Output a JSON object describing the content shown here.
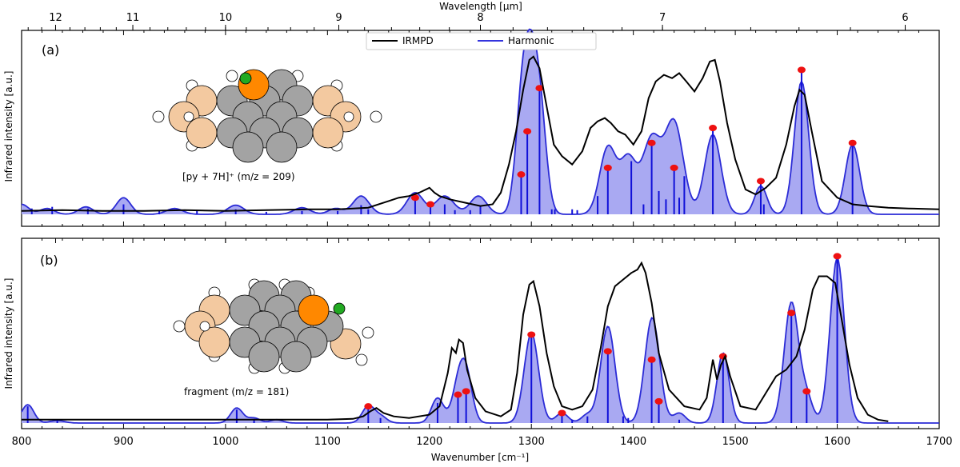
{
  "chart_data": {
    "type": "line",
    "x_axis": {
      "label": "Wavenumber [cm⁻¹]",
      "range": [
        800,
        1700
      ],
      "ticks": [
        800,
        900,
        1000,
        1100,
        1200,
        1300,
        1400,
        1500,
        1600,
        1700
      ]
    },
    "top_axis": {
      "label": "Wavelength [μm]",
      "ticks": [
        12,
        11,
        10,
        9,
        8,
        7,
        6
      ]
    },
    "y_label": "Infrared intensity [a.u.]",
    "legend": {
      "placement": "top-center",
      "entries": [
        {
          "name": "IRMPD",
          "color": "#000000"
        },
        {
          "name": "Harmonic",
          "color": "#3333dd"
        }
      ]
    },
    "colors": {
      "irmpd": "#000000",
      "harmonic_line": "#2b2bd6",
      "harmonic_fill": "#a9a9f2",
      "stick": "#1010d8",
      "marker": "#ee1111",
      "ring_gray": "#a3a3a3",
      "ring_peach": "#f3c9a0",
      "ring_orange": "#ff8800",
      "atom_green": "#22aa22"
    },
    "panels": [
      {
        "tag": "(a)",
        "label": "[py + 7H]⁺  (m/z = 209)",
        "ylim": [
          0,
          1.05
        ],
        "harmonic_peaks": [
          {
            "x": 800,
            "h": 0.06,
            "w": 7
          },
          {
            "x": 825,
            "h": 0.035,
            "w": 7
          },
          {
            "x": 863,
            "h": 0.045,
            "w": 7
          },
          {
            "x": 900,
            "h": 0.1,
            "w": 7
          },
          {
            "x": 950,
            "h": 0.035,
            "w": 8
          },
          {
            "x": 1010,
            "h": 0.055,
            "w": 8
          },
          {
            "x": 1075,
            "h": 0.04,
            "w": 8
          },
          {
            "x": 1108,
            "h": 0.035,
            "w": 7
          },
          {
            "x": 1133,
            "h": 0.11,
            "w": 8
          },
          {
            "x": 1186,
            "h": 0.13,
            "w": 8
          },
          {
            "x": 1215,
            "h": 0.11,
            "w": 9
          },
          {
            "x": 1248,
            "h": 0.11,
            "w": 8
          },
          {
            "x": 1290,
            "h": 0.42,
            "w": 6
          },
          {
            "x": 1300,
            "h": 0.93,
            "w": 8
          },
          {
            "x": 1310,
            "h": 0.3,
            "w": 6
          },
          {
            "x": 1375,
            "h": 0.4,
            "w": 8
          },
          {
            "x": 1395,
            "h": 0.33,
            "w": 8
          },
          {
            "x": 1418,
            "h": 0.45,
            "w": 9
          },
          {
            "x": 1440,
            "h": 0.55,
            "w": 9
          },
          {
            "x": 1478,
            "h": 0.48,
            "w": 8
          },
          {
            "x": 1525,
            "h": 0.17,
            "w": 6
          },
          {
            "x": 1565,
            "h": 0.8,
            "w": 7
          },
          {
            "x": 1615,
            "h": 0.42,
            "w": 7
          }
        ],
        "irmpd_points": [
          [
            800,
            0.02
          ],
          [
            840,
            0.025
          ],
          [
            880,
            0.02
          ],
          [
            920,
            0.02
          ],
          [
            960,
            0.025
          ],
          [
            1000,
            0.02
          ],
          [
            1040,
            0.025
          ],
          [
            1080,
            0.03
          ],
          [
            1110,
            0.03
          ],
          [
            1140,
            0.04
          ],
          [
            1160,
            0.08
          ],
          [
            1170,
            0.1
          ],
          [
            1180,
            0.11
          ],
          [
            1190,
            0.13
          ],
          [
            1200,
            0.16
          ],
          [
            1205,
            0.13
          ],
          [
            1210,
            0.11
          ],
          [
            1220,
            0.09
          ],
          [
            1235,
            0.07
          ],
          [
            1250,
            0.05
          ],
          [
            1262,
            0.06
          ],
          [
            1270,
            0.13
          ],
          [
            1278,
            0.3
          ],
          [
            1285,
            0.5
          ],
          [
            1292,
            0.75
          ],
          [
            1298,
            0.93
          ],
          [
            1302,
            0.95
          ],
          [
            1308,
            0.88
          ],
          [
            1315,
            0.65
          ],
          [
            1322,
            0.42
          ],
          [
            1330,
            0.35
          ],
          [
            1340,
            0.3
          ],
          [
            1350,
            0.38
          ],
          [
            1358,
            0.52
          ],
          [
            1365,
            0.56
          ],
          [
            1372,
            0.58
          ],
          [
            1378,
            0.55
          ],
          [
            1385,
            0.5
          ],
          [
            1392,
            0.48
          ],
          [
            1400,
            0.42
          ],
          [
            1408,
            0.5
          ],
          [
            1415,
            0.7
          ],
          [
            1422,
            0.8
          ],
          [
            1430,
            0.84
          ],
          [
            1438,
            0.82
          ],
          [
            1445,
            0.85
          ],
          [
            1452,
            0.8
          ],
          [
            1460,
            0.74
          ],
          [
            1468,
            0.82
          ],
          [
            1475,
            0.92
          ],
          [
            1480,
            0.93
          ],
          [
            1485,
            0.8
          ],
          [
            1492,
            0.55
          ],
          [
            1500,
            0.33
          ],
          [
            1510,
            0.15
          ],
          [
            1520,
            0.12
          ],
          [
            1530,
            0.16
          ],
          [
            1540,
            0.22
          ],
          [
            1550,
            0.42
          ],
          [
            1558,
            0.65
          ],
          [
            1563,
            0.75
          ],
          [
            1568,
            0.72
          ],
          [
            1575,
            0.5
          ],
          [
            1585,
            0.2
          ],
          [
            1600,
            0.1
          ],
          [
            1615,
            0.06
          ],
          [
            1630,
            0.05
          ],
          [
            1650,
            0.04
          ],
          [
            1670,
            0.035
          ],
          [
            1700,
            0.03
          ]
        ],
        "sticks": [
          {
            "x": 810,
            "h": 0.035
          },
          {
            "x": 830,
            "h": 0.045
          },
          {
            "x": 865,
            "h": 0.035
          },
          {
            "x": 900,
            "h": 0.06
          },
          {
            "x": 935,
            "h": 0.02
          },
          {
            "x": 972,
            "h": 0.02
          },
          {
            "x": 1010,
            "h": 0.03
          },
          {
            "x": 1040,
            "h": 0.015
          },
          {
            "x": 1075,
            "h": 0.02
          },
          {
            "x": 1110,
            "h": 0.02
          },
          {
            "x": 1133,
            "h": 0.055
          },
          {
            "x": 1140,
            "h": 0.03
          },
          {
            "x": 1186,
            "h": 0.1,
            "marker": true
          },
          {
            "x": 1201,
            "h": 0.06,
            "marker": true
          },
          {
            "x": 1215,
            "h": 0.06
          },
          {
            "x": 1225,
            "h": 0.025
          },
          {
            "x": 1240,
            "h": 0.025
          },
          {
            "x": 1250,
            "h": 0.05
          },
          {
            "x": 1290,
            "h": 0.24,
            "marker": true
          },
          {
            "x": 1296,
            "h": 0.5,
            "marker": true
          },
          {
            "x": 1308,
            "h": 0.76,
            "marker": true
          },
          {
            "x": 1320,
            "h": 0.03
          },
          {
            "x": 1323,
            "h": 0.03
          },
          {
            "x": 1340,
            "h": 0.03
          },
          {
            "x": 1345,
            "h": 0.025
          },
          {
            "x": 1365,
            "h": 0.11
          },
          {
            "x": 1375,
            "h": 0.28,
            "marker": true
          },
          {
            "x": 1398,
            "h": 0.32
          },
          {
            "x": 1410,
            "h": 0.06
          },
          {
            "x": 1418,
            "h": 0.43,
            "marker": true
          },
          {
            "x": 1425,
            "h": 0.14
          },
          {
            "x": 1432,
            "h": 0.09
          },
          {
            "x": 1440,
            "h": 0.28,
            "marker": true
          },
          {
            "x": 1445,
            "h": 0.1
          },
          {
            "x": 1450,
            "h": 0.23
          },
          {
            "x": 1478,
            "h": 0.52,
            "marker": true
          },
          {
            "x": 1525,
            "h": 0.2,
            "marker": true
          },
          {
            "x": 1528,
            "h": 0.06
          },
          {
            "x": 1565,
            "h": 0.87,
            "marker": true
          },
          {
            "x": 1615,
            "h": 0.43,
            "marker": true
          }
        ]
      },
      {
        "tag": "(b)",
        "label": "fragment (m/z = 181)",
        "ylim": [
          0,
          1.05
        ],
        "harmonic_peaks": [
          {
            "x": 806,
            "h": 0.11,
            "w": 6
          },
          {
            "x": 835,
            "h": 0.015,
            "w": 7
          },
          {
            "x": 1011,
            "h": 0.09,
            "w": 6
          },
          {
            "x": 1028,
            "h": 0.03,
            "w": 6
          },
          {
            "x": 1050,
            "h": 0.02,
            "w": 6
          },
          {
            "x": 1140,
            "h": 0.1,
            "w": 6
          },
          {
            "x": 1152,
            "h": 0.04,
            "w": 6
          },
          {
            "x": 1208,
            "h": 0.15,
            "w": 6
          },
          {
            "x": 1228,
            "h": 0.2,
            "w": 6
          },
          {
            "x": 1236,
            "h": 0.28,
            "w": 6
          },
          {
            "x": 1300,
            "h": 0.54,
            "w": 7
          },
          {
            "x": 1330,
            "h": 0.06,
            "w": 6
          },
          {
            "x": 1355,
            "h": 0.05,
            "w": 6
          },
          {
            "x": 1375,
            "h": 0.58,
            "w": 7
          },
          {
            "x": 1418,
            "h": 0.6,
            "w": 7
          },
          {
            "x": 1425,
            "h": 0.06,
            "w": 6
          },
          {
            "x": 1445,
            "h": 0.06,
            "w": 6
          },
          {
            "x": 1488,
            "h": 0.42,
            "w": 6
          },
          {
            "x": 1555,
            "h": 0.72,
            "w": 7
          },
          {
            "x": 1570,
            "h": 0.15,
            "w": 6
          },
          {
            "x": 1600,
            "h": 0.99,
            "w": 7
          }
        ],
        "irmpd_points": [
          [
            800,
            0.02
          ],
          [
            900,
            0.02
          ],
          [
            1000,
            0.02
          ],
          [
            1100,
            0.02
          ],
          [
            1125,
            0.025
          ],
          [
            1135,
            0.04
          ],
          [
            1142,
            0.07
          ],
          [
            1148,
            0.09
          ],
          [
            1155,
            0.06
          ],
          [
            1165,
            0.04
          ],
          [
            1180,
            0.03
          ],
          [
            1200,
            0.05
          ],
          [
            1210,
            0.1
          ],
          [
            1218,
            0.3
          ],
          [
            1222,
            0.45
          ],
          [
            1226,
            0.42
          ],
          [
            1229,
            0.5
          ],
          [
            1233,
            0.48
          ],
          [
            1237,
            0.32
          ],
          [
            1245,
            0.15
          ],
          [
            1255,
            0.07
          ],
          [
            1270,
            0.04
          ],
          [
            1280,
            0.08
          ],
          [
            1286,
            0.3
          ],
          [
            1292,
            0.65
          ],
          [
            1298,
            0.83
          ],
          [
            1302,
            0.85
          ],
          [
            1308,
            0.7
          ],
          [
            1315,
            0.42
          ],
          [
            1322,
            0.22
          ],
          [
            1330,
            0.1
          ],
          [
            1340,
            0.08
          ],
          [
            1350,
            0.1
          ],
          [
            1360,
            0.2
          ],
          [
            1368,
            0.45
          ],
          [
            1375,
            0.7
          ],
          [
            1382,
            0.82
          ],
          [
            1390,
            0.86
          ],
          [
            1398,
            0.9
          ],
          [
            1404,
            0.92
          ],
          [
            1408,
            0.96
          ],
          [
            1412,
            0.9
          ],
          [
            1418,
            0.72
          ],
          [
            1425,
            0.42
          ],
          [
            1435,
            0.2
          ],
          [
            1450,
            0.1
          ],
          [
            1465,
            0.08
          ],
          [
            1472,
            0.15
          ],
          [
            1478,
            0.38
          ],
          [
            1482,
            0.26
          ],
          [
            1486,
            0.35
          ],
          [
            1490,
            0.4
          ],
          [
            1495,
            0.28
          ],
          [
            1505,
            0.1
          ],
          [
            1520,
            0.08
          ],
          [
            1530,
            0.18
          ],
          [
            1540,
            0.28
          ],
          [
            1550,
            0.32
          ],
          [
            1560,
            0.4
          ],
          [
            1568,
            0.56
          ],
          [
            1576,
            0.8
          ],
          [
            1582,
            0.88
          ],
          [
            1590,
            0.88
          ],
          [
            1598,
            0.84
          ],
          [
            1605,
            0.6
          ],
          [
            1612,
            0.35
          ],
          [
            1620,
            0.15
          ],
          [
            1630,
            0.05
          ],
          [
            1640,
            0.02
          ],
          [
            1650,
            0.01
          ]
        ],
        "sticks": [
          {
            "x": 806,
            "h": 0.1
          },
          {
            "x": 835,
            "h": 0.015
          },
          {
            "x": 1011,
            "h": 0.08
          },
          {
            "x": 1028,
            "h": 0.025
          },
          {
            "x": 1140,
            "h": 0.1,
            "marker": true
          },
          {
            "x": 1152,
            "h": 0.03
          },
          {
            "x": 1208,
            "h": 0.12
          },
          {
            "x": 1228,
            "h": 0.17,
            "marker": true
          },
          {
            "x": 1236,
            "h": 0.19,
            "marker": true
          },
          {
            "x": 1300,
            "h": 0.53,
            "marker": true
          },
          {
            "x": 1330,
            "h": 0.06,
            "marker": true
          },
          {
            "x": 1340,
            "h": 0.02
          },
          {
            "x": 1355,
            "h": 0.04
          },
          {
            "x": 1375,
            "h": 0.43,
            "marker": true
          },
          {
            "x": 1390,
            "h": 0.04
          },
          {
            "x": 1395,
            "h": 0.03
          },
          {
            "x": 1418,
            "h": 0.38,
            "marker": true
          },
          {
            "x": 1425,
            "h": 0.13,
            "marker": true
          },
          {
            "x": 1445,
            "h": 0.02
          },
          {
            "x": 1488,
            "h": 0.4,
            "marker": true
          },
          {
            "x": 1555,
            "h": 0.66,
            "marker": true
          },
          {
            "x": 1570,
            "h": 0.19,
            "marker": true
          },
          {
            "x": 1600,
            "h": 1.0,
            "marker": true
          }
        ]
      }
    ]
  }
}
